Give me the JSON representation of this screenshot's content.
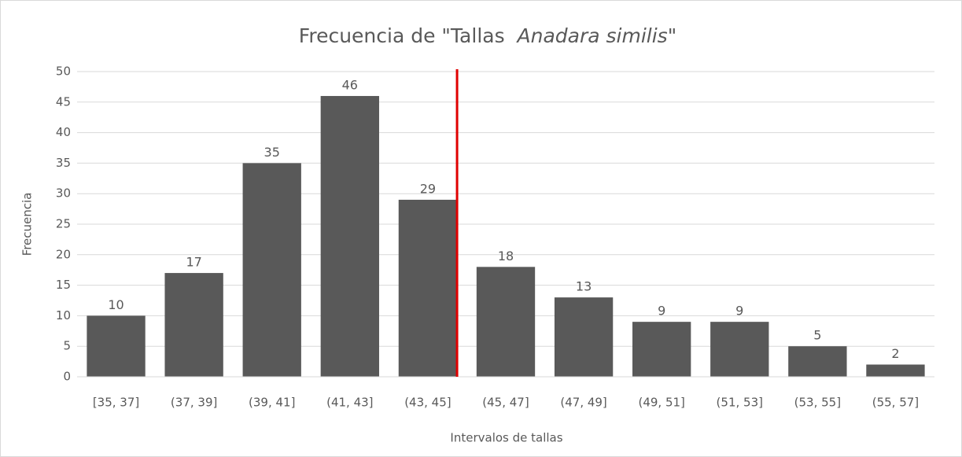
{
  "chart_data": {
    "type": "bar",
    "title": [
      "Frecuencia de \"Tallas  ",
      "Anadara similis",
      "\""
    ],
    "x_label": "Intervalos de tallas",
    "y_label": "Frecuencia",
    "categories": [
      "[35, 37]",
      "(37, 39]",
      "(39, 41]",
      "(41, 43]",
      "(43, 45]",
      "(45, 47]",
      "(47, 49]",
      "(49, 51]",
      "(51, 53]",
      "(53, 55]",
      "(55, 57]"
    ],
    "values": [
      10,
      17,
      35,
      46,
      29,
      18,
      13,
      9,
      9,
      5,
      2
    ],
    "color": "#595959",
    "ylim": [
      0,
      50
    ],
    "yticks": [
      0,
      5,
      10,
      15,
      20,
      25,
      30,
      35,
      40,
      45,
      50
    ],
    "grid": true
  }
}
